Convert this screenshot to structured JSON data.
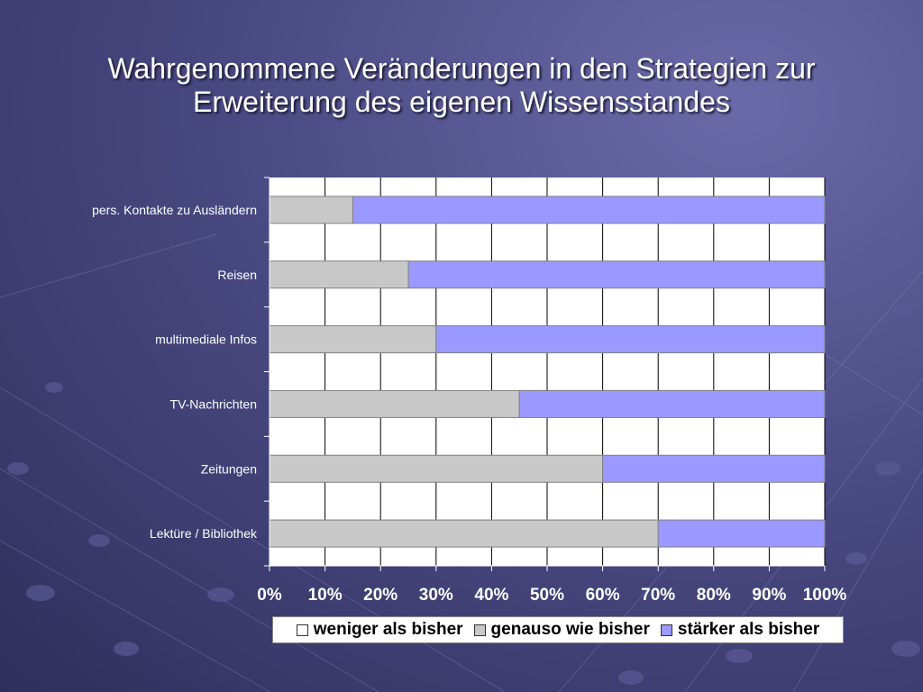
{
  "slide": {
    "title_line1": "Wahrgenommene Veränderungen in den Strategien zur",
    "title_line2": "Erweiterung des eigenen Wissensstandes"
  },
  "colors": {
    "weniger": "#ffffff",
    "genauso": "#c8c8c8",
    "staerker": "#9999ff",
    "plot_bg": "#ffffff",
    "gridline": "#000000"
  },
  "chart_data": {
    "type": "bar",
    "orientation": "horizontal",
    "stacked": "percent",
    "categories": [
      "pers. Kontakte zu Ausländern",
      "Reisen",
      "multimediale Infos",
      "TV-Nachrichten",
      "Zeitungen",
      "Lektüre / Bibliothek"
    ],
    "series": [
      {
        "name": "weniger als bisher",
        "values": [
          0,
          0,
          0,
          0,
          0,
          0
        ]
      },
      {
        "name": "genauso wie bisher",
        "values": [
          15,
          25,
          30,
          45,
          60,
          70
        ]
      },
      {
        "name": "stärker als bisher",
        "values": [
          85,
          75,
          70,
          55,
          40,
          30
        ]
      }
    ],
    "x_ticks": [
      "0%",
      "10%",
      "20%",
      "30%",
      "40%",
      "50%",
      "60%",
      "70%",
      "80%",
      "90%",
      "100%"
    ],
    "xlim": [
      0,
      100
    ],
    "grid": true,
    "legend_position": "bottom"
  }
}
